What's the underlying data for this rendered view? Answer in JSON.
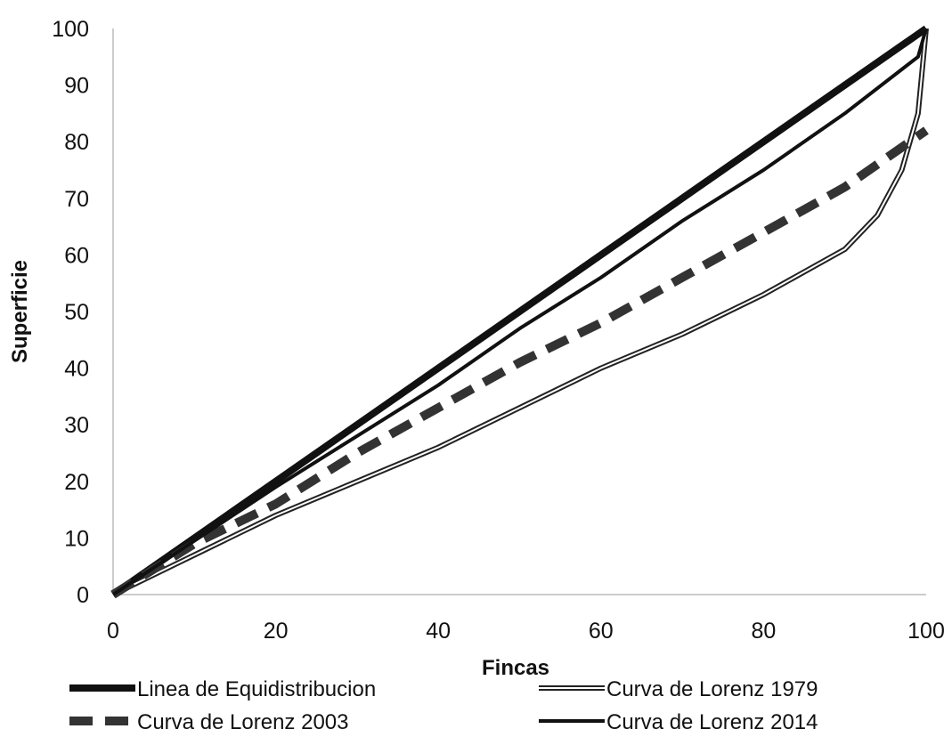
{
  "chart_data": {
    "type": "line",
    "title": "",
    "xlabel": "Fincas",
    "ylabel": "Superficie",
    "xlim": [
      0,
      100
    ],
    "ylim": [
      0,
      100
    ],
    "x_ticks": [
      "0",
      "20",
      "40",
      "60",
      "80",
      "100"
    ],
    "y_ticks": [
      "0",
      "10",
      "20",
      "30",
      "40",
      "50",
      "60",
      "70",
      "80",
      "90",
      "100"
    ],
    "grid": false,
    "legend_position": "bottom",
    "series": [
      {
        "name": "Linea de Equidistribucion",
        "style": "thick-solid",
        "color": "#111111",
        "x": [
          0,
          100
        ],
        "y": [
          0,
          100
        ]
      },
      {
        "name": "Curva de Lorenz 1979",
        "style": "double-line",
        "color": "#222222",
        "x": [
          0,
          10,
          20,
          30,
          40,
          50,
          60,
          70,
          80,
          90,
          94,
          97,
          99,
          100
        ],
        "y": [
          0,
          7,
          14,
          20,
          26,
          33,
          40,
          46,
          53,
          61,
          67,
          75,
          85,
          100
        ]
      },
      {
        "name": "Curva de Lorenz 2003",
        "style": "thick-dashed",
        "color": "#333333",
        "x": [
          0,
          10,
          20,
          30,
          40,
          50,
          60,
          70,
          80,
          90,
          100
        ],
        "y": [
          0,
          9,
          16,
          25,
          33,
          41,
          48,
          56,
          64,
          72,
          82
        ]
      },
      {
        "name": "Curva de Lorenz 2014",
        "style": "solid",
        "color": "#111111",
        "x": [
          0,
          10,
          20,
          30,
          40,
          50,
          60,
          70,
          80,
          90,
          99,
          100
        ],
        "y": [
          0,
          9.5,
          19,
          28,
          37,
          47,
          56,
          66,
          75,
          85,
          95,
          100
        ]
      }
    ]
  }
}
